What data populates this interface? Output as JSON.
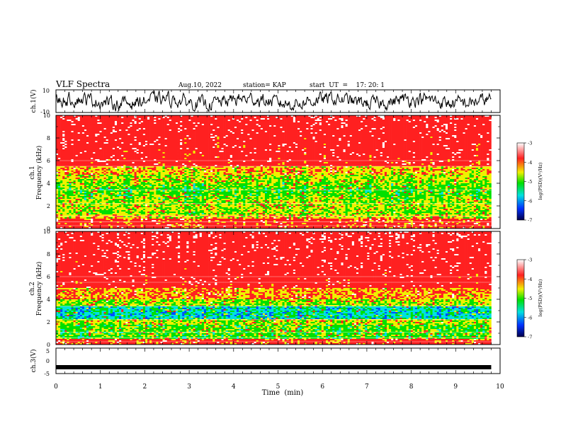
{
  "header": {
    "title": "VLF Spectra",
    "date": "Aug.10, 2022",
    "station": "station= KAP",
    "start": "start  UT  =    17: 20: 1"
  },
  "chart_data": [
    {
      "type": "line",
      "name": "ch1-waveform",
      "ylabel": "ch.1(V)",
      "ylim": [
        -10,
        10
      ],
      "yticks": [
        "10",
        "-10"
      ],
      "xlim": [
        0,
        10
      ]
    },
    {
      "type": "heatmap",
      "name": "ch1-spectrogram",
      "ylabel_top": "ch.1",
      "ylabel": "Frequency  (kHz)",
      "ylim": [
        0,
        10
      ],
      "yticks": [
        "0",
        "2",
        "4",
        "6",
        "8",
        "10"
      ],
      "xlim": [
        0,
        9.8
      ],
      "colorbar": {
        "label": "log(PSD)(V²/Hz)",
        "range": [
          -7,
          -3
        ],
        "ticks": [
          "-3",
          "-4",
          "-5",
          "-6",
          "-7"
        ]
      }
    },
    {
      "type": "heatmap",
      "name": "ch2-spectrogram",
      "ylabel_top": "ch.2",
      "ylabel": "Frequency  (kHz)",
      "ylim": [
        0,
        10
      ],
      "yticks": [
        "0",
        "2",
        "4",
        "6",
        "8",
        "10"
      ],
      "xlim": [
        0,
        9.8
      ],
      "colorbar": {
        "label": "log(PSD)(V²/Hz)",
        "range": [
          -7,
          -3
        ],
        "ticks": [
          "-3",
          "-4",
          "-5",
          "-6",
          "-7"
        ]
      }
    },
    {
      "type": "line",
      "name": "ch3-waveform",
      "ylabel": "ch.3(V)",
      "ylim": [
        -5,
        5
      ],
      "yticks": [
        "5",
        "0",
        "-5"
      ],
      "xlim": [
        0,
        10
      ],
      "baseline_value": -2.5
    }
  ],
  "x_axis": {
    "label": "Time  (min)",
    "ticks": [
      "0",
      "1",
      "2",
      "3",
      "4",
      "5",
      "6",
      "7",
      "8",
      "9",
      "10"
    ]
  },
  "colors": {
    "low": "#00007a",
    "blue": "#0050ff",
    "cyan": "#00e0e0",
    "green": "#00e000",
    "yellow": "#f0f000",
    "red": "#ff2020",
    "high": "#ffffff"
  }
}
